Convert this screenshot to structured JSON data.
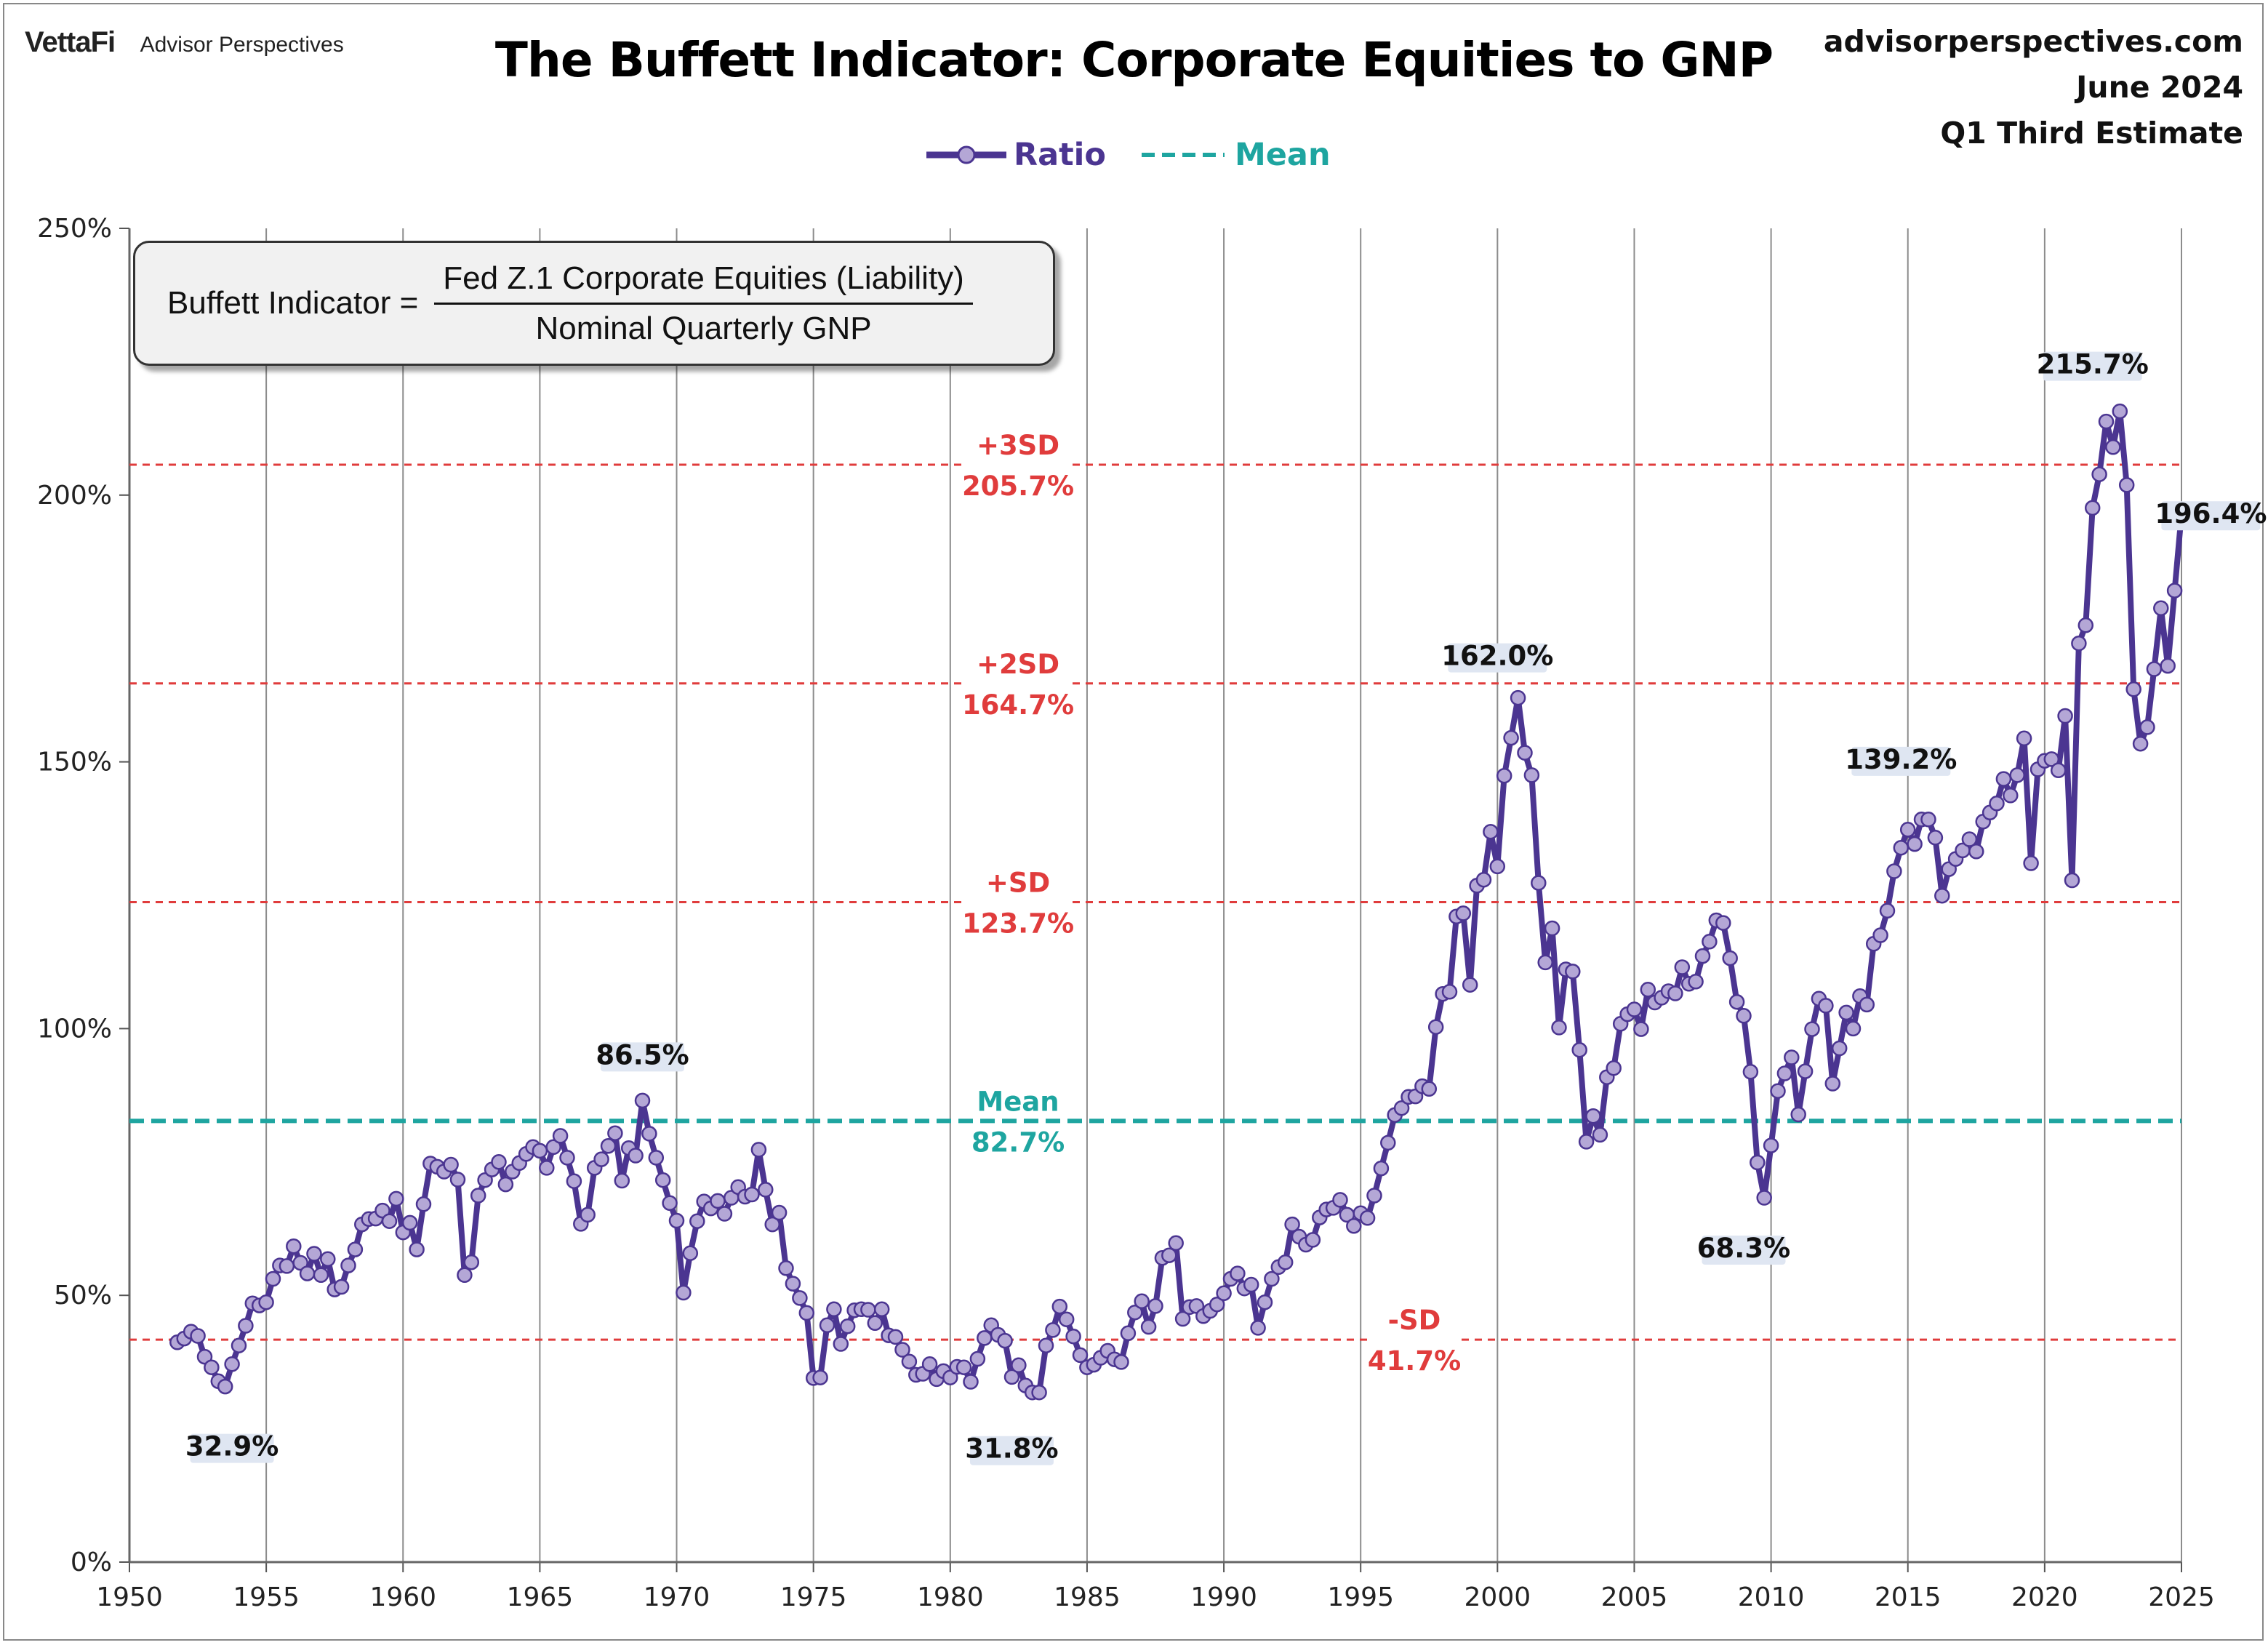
{
  "header": {
    "brand": "VettaFi",
    "brand_sub": "Advisor Perspectives",
    "site": "advisorperspectives.com",
    "date": "June 2024",
    "estimate": "Q1 Third Estimate"
  },
  "formula": {
    "lhs": "Buffett Indicator =",
    "numerator": "Fed Z.1 Corporate Equities (Liability)",
    "denominator": "Nominal Quarterly GNP"
  },
  "colors": {
    "ratio_line": "#4b3591",
    "ratio_marker": "#b4a7d6",
    "mean_line": "#1ea5a0",
    "sd_line": "#e03c3c",
    "grid": "#8c8c8c"
  },
  "chart_data": {
    "type": "line",
    "title": "The Buffett Indicator: Corporate Equities to GNP",
    "xlabel": "",
    "ylabel": "",
    "xlim": [
      1950,
      2025
    ],
    "ylim": [
      0,
      250
    ],
    "x_ticks": [
      "1950",
      "1955",
      "1960",
      "1965",
      "1970",
      "1975",
      "1980",
      "1985",
      "1990",
      "1995",
      "2000",
      "2005",
      "2010",
      "2015",
      "2020",
      "2025"
    ],
    "y_ticks": [
      "0%",
      "50%",
      "100%",
      "150%",
      "200%",
      "250%"
    ],
    "grid": "vertical",
    "legend_position": "top-center",
    "legend": [
      {
        "label": "Ratio",
        "style": "line-marker"
      },
      {
        "label": "Mean",
        "style": "dashed"
      }
    ],
    "reference_lines": [
      {
        "label": "+3SD",
        "value": 205.7,
        "value_label": "205.7%",
        "style": "sd"
      },
      {
        "label": "+2SD",
        "value": 164.7,
        "value_label": "164.7%",
        "style": "sd"
      },
      {
        "label": "+SD",
        "value": 123.7,
        "value_label": "123.7%",
        "style": "sd"
      },
      {
        "label": "Mean",
        "value": 82.7,
        "value_label": "82.7%",
        "style": "mean"
      },
      {
        "label": "-SD",
        "value": 41.7,
        "value_label": "41.7%",
        "style": "sd"
      }
    ],
    "annotations": [
      {
        "label": "32.9%",
        "x": 1953.75,
        "y": 32.9
      },
      {
        "label": "86.5%",
        "x": 1968.75,
        "y": 86.5
      },
      {
        "label": "31.8%",
        "x": 1982.25,
        "y": 31.8
      },
      {
        "label": "162.0%",
        "x": 2000.0,
        "y": 162.0
      },
      {
        "label": "68.3%",
        "x": 2009.0,
        "y": 68.3
      },
      {
        "label": "139.2%",
        "x": 2014.75,
        "y": 139.2
      },
      {
        "label": "215.7%",
        "x": 2021.75,
        "y": 215.7
      },
      {
        "label": "196.4%",
        "x": 2024.0,
        "y": 196.4
      }
    ],
    "series": [
      {
        "name": "Ratio",
        "x_start": 1951.75,
        "x_step": 0.25,
        "values": [
          41.2,
          41.9,
          43.2,
          42.4,
          38.5,
          36.5,
          33.9,
          32.9,
          37.1,
          40.6,
          44.3,
          48.5,
          48.1,
          48.7,
          53.1,
          55.6,
          55.5,
          59.2,
          56.1,
          54.1,
          57.8,
          53.8,
          56.8,
          51.1,
          51.6,
          55.6,
          58.6,
          63.3,
          64.3,
          64.4,
          65.9,
          63.9,
          68.1,
          61.8,
          63.6,
          58.6,
          67.1,
          74.7,
          74.1,
          73.2,
          74.5,
          71.7,
          53.8,
          56.2,
          68.7,
          71.6,
          73.6,
          75.0,
          70.8,
          73.2,
          74.8,
          76.5,
          77.8,
          77.1,
          73.9,
          77.8,
          79.9,
          75.8,
          71.4,
          63.4,
          65.1,
          73.9,
          75.5,
          78.0,
          80.4,
          71.5,
          77.6,
          76.2,
          86.5,
          80.3,
          75.8,
          71.6,
          67.3,
          64.0,
          50.5,
          57.9,
          63.9,
          67.6,
          66.3,
          67.7,
          65.3,
          68.3,
          70.3,
          68.5,
          68.9,
          77.3,
          69.8,
          63.3,
          65.5,
          55.1,
          52.2,
          49.5,
          46.7,
          34.5,
          34.6,
          44.4,
          47.4,
          40.9,
          44.2,
          47.2,
          47.4,
          47.3,
          44.8,
          47.4,
          42.5,
          42.2,
          39.8,
          37.6,
          35.1,
          35.3,
          37.1,
          34.3,
          35.8,
          34.6,
          36.6,
          36.5,
          33.8,
          38.1,
          42.0,
          44.4,
          42.6,
          41.5,
          34.7,
          36.9,
          33.1,
          31.8,
          31.8,
          40.6,
          43.5,
          47.9,
          45.5,
          42.3,
          38.8,
          36.5,
          37.0,
          38.3,
          39.6,
          38.0,
          37.5,
          42.9,
          46.8,
          48.9,
          44.1,
          48.0,
          57.0,
          57.5,
          59.8,
          45.6,
          47.8,
          48.0,
          46.1,
          47.1,
          48.3,
          50.4,
          53.1,
          54.1,
          51.3,
          52.0,
          43.9,
          48.7,
          53.1,
          55.3,
          56.2,
          63.3,
          61.0,
          59.5,
          60.4,
          64.6,
          66.1,
          66.4,
          67.9,
          65.1,
          63.0,
          65.4,
          64.5,
          68.7,
          73.8,
          78.6,
          83.8,
          85.1,
          87.2,
          87.3,
          89.2,
          88.7,
          100.3,
          106.5,
          106.9,
          121.0,
          121.6,
          108.2,
          126.8,
          127.9,
          136.9,
          130.4,
          147.4,
          154.5,
          162.0,
          151.7,
          147.5,
          127.3,
          112.4,
          118.8,
          100.2,
          111.1,
          110.7,
          96.0,
          78.8,
          83.6,
          80.1,
          90.9,
          92.6,
          100.9,
          102.7,
          103.6,
          99.9,
          107.3,
          104.9,
          105.8,
          107.0,
          106.6,
          111.5,
          108.4,
          108.8,
          113.6,
          116.3,
          120.3,
          119.8,
          113.2,
          105.0,
          102.4,
          91.9,
          74.9,
          68.3,
          78.1,
          88.3,
          91.6,
          94.6,
          83.9,
          92.0,
          99.9,
          105.6,
          104.3,
          89.7,
          96.3,
          103.0,
          100.0,
          106.1,
          104.5,
          115.9,
          117.5,
          122.1,
          129.5,
          133.9,
          137.3,
          134.6,
          139.2,
          139.2,
          135.8,
          124.9,
          129.9,
          131.8,
          133.4,
          135.5,
          133.2,
          138.8,
          140.5,
          142.2,
          146.8,
          143.7,
          147.5,
          154.4,
          131.0,
          148.6,
          150.2,
          150.5,
          148.4,
          158.6,
          127.8,
          172.2,
          175.6,
          197.6,
          203.9,
          213.8,
          209.0,
          215.7,
          201.9,
          163.6,
          153.4,
          156.5,
          167.4,
          178.8,
          168.0,
          182.1,
          196.4
        ]
      }
    ]
  }
}
